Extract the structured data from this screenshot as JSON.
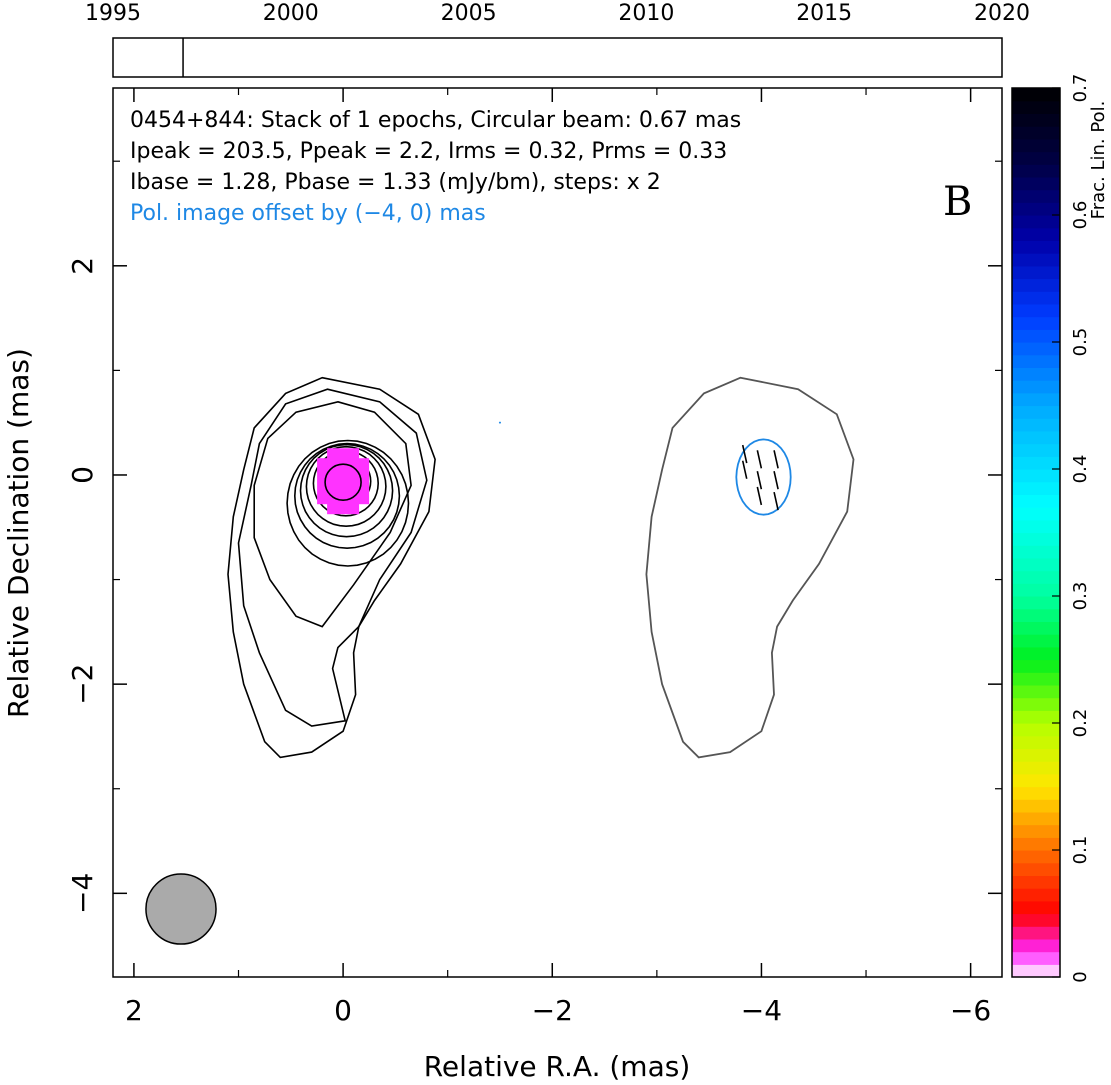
{
  "chart_data": {
    "type": "contour",
    "timeline": {
      "ticks": [
        1995,
        2000,
        2005,
        2010,
        2015,
        2020
      ],
      "range": [
        1995,
        2020
      ],
      "epochs": [
        1996.97
      ]
    },
    "annotations": {
      "line1": "0454+844: Stack of 1 epochs, Circular beam: 0.67 mas",
      "line2": "Ipeak = 203.5, Ppeak = 2.2, Irms = 0.32, Prms = 0.33",
      "line3": "Ibase = 1.28, Pbase = 1.33 (mJy/bm), steps: x 2",
      "line4": "Pol. image offset by (−4, 0) mas",
      "panel_letter": "B"
    },
    "xlabel": "Relative R.A. (mas)",
    "ylabel": "Relative Declination (mas)",
    "xlim": [
      2.2,
      -6.3
    ],
    "ylim": [
      -4.8,
      3.7
    ],
    "xticks": [
      2,
      0,
      -2,
      -4,
      -6
    ],
    "yticks": [
      -4,
      -2,
      0,
      2
    ],
    "xtick_labels": [
      "2",
      "0",
      "−2",
      "−4",
      "−6"
    ],
    "ytick_labels": [
      "−4",
      "−2",
      "0",
      "2"
    ],
    "beam": {
      "x": 1.55,
      "y": -4.15,
      "diameter": 0.67
    },
    "colorbar": {
      "label": "Frac. Lin. Pol.",
      "range": [
        0,
        0.7
      ],
      "ticks": [
        0,
        0.1,
        0.2,
        0.3,
        0.4,
        0.5,
        0.6,
        0.7
      ],
      "tick_labels": [
        "0",
        "0.1",
        "0.2",
        "0.3",
        "0.4",
        "0.5",
        "0.6",
        "0.7"
      ]
    },
    "fractional_pol_pixels": {
      "center": [
        0.0,
        -0.05
      ],
      "value": 0.02
    },
    "colors": {
      "total_intensity_contour": "#000000",
      "pol_contour": "#1e88e5",
      "pol_outline": "#555555",
      "frac_pol": "#ff33ff",
      "beam_fill": "#aaaaaa"
    }
  }
}
